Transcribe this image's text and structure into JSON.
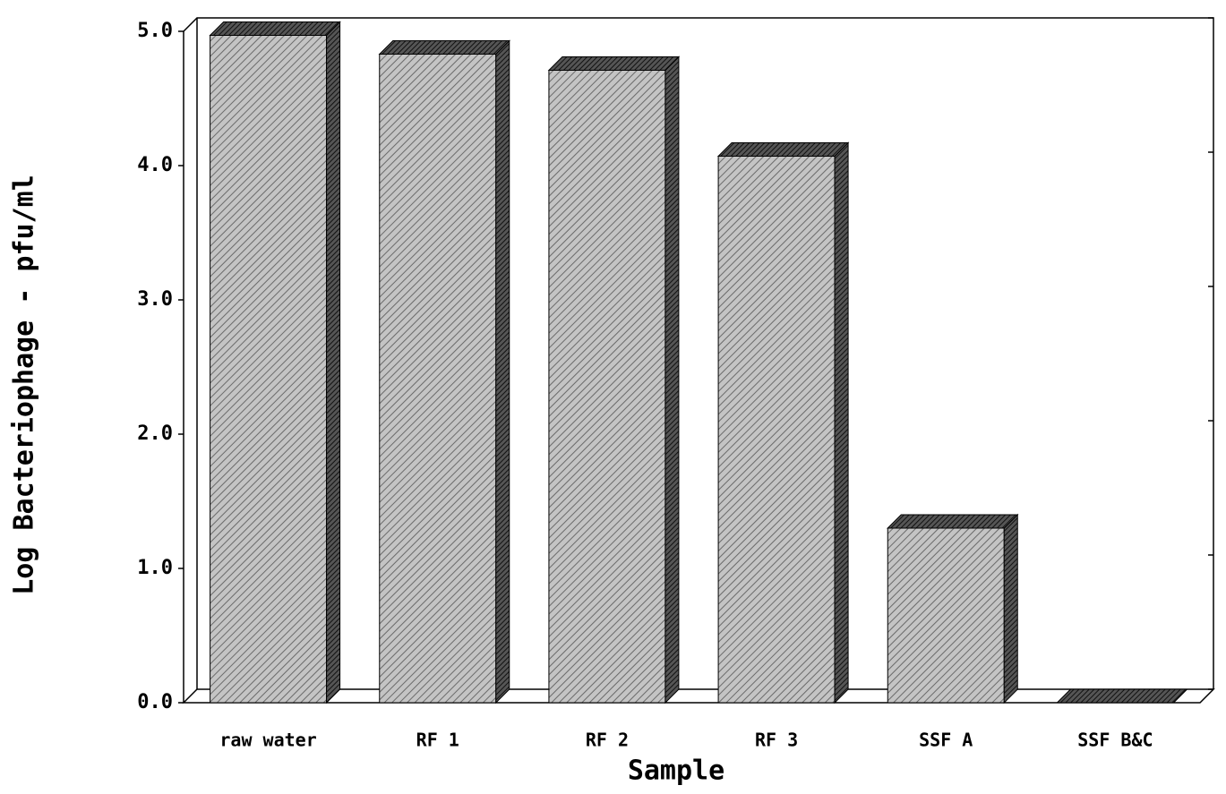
{
  "chart_data": {
    "type": "bar3d",
    "x_label": "Sample",
    "y_label": "Log Bacteriophage - pfu/ml",
    "categories": [
      "raw water",
      "RF 1",
      "RF 2",
      "RF 3",
      "SSF A",
      "SSF B&C"
    ],
    "values": [
      4.97,
      4.83,
      4.71,
      4.07,
      1.3,
      0
    ],
    "ylim": [
      0,
      5
    ],
    "yticks": [
      {
        "value": 0,
        "label": "0.0"
      },
      {
        "value": 1,
        "label": "1.0"
      },
      {
        "value": 2,
        "label": "2.0"
      },
      {
        "value": 3,
        "label": "3.0"
      },
      {
        "value": 4,
        "label": "4.0"
      },
      {
        "value": 5,
        "label": "5.0"
      }
    ],
    "color": "#b8b8b8"
  }
}
